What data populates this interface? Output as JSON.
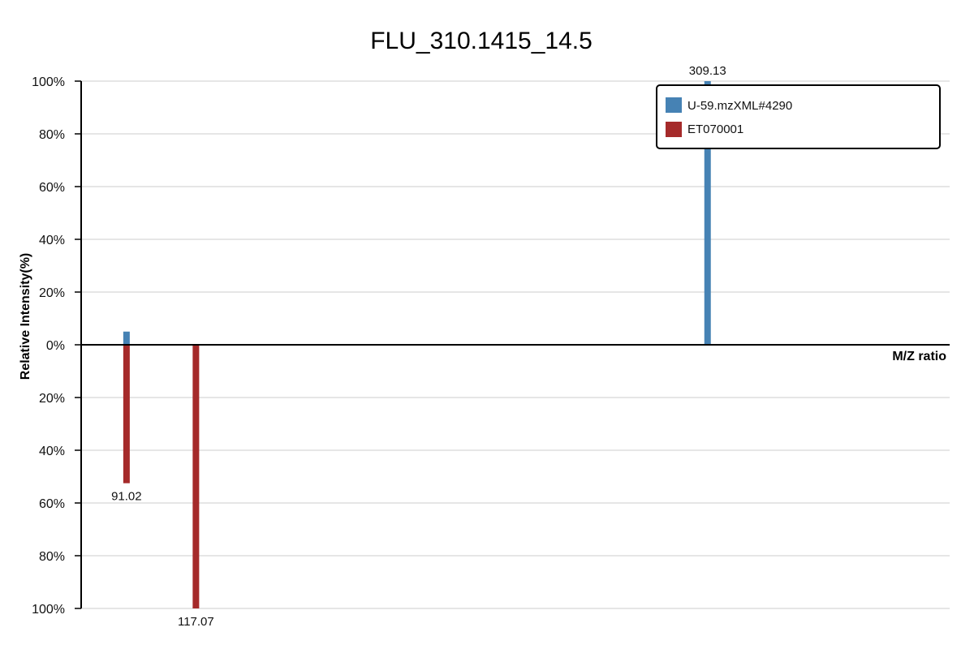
{
  "chart_data": {
    "type": "bar",
    "title": "FLU_310.1415_14.5",
    "xlabel": "M/Z ratio",
    "ylabel": "Relative Intensity(%)",
    "upper_ylim": [
      0,
      100
    ],
    "lower_ylim": [
      0,
      100
    ],
    "y_ticks_upper": [
      "100%",
      "80%",
      "60%",
      "40%",
      "20%",
      "0%"
    ],
    "y_ticks_lower": [
      "20%",
      "40%",
      "60%",
      "80%",
      "100%"
    ],
    "grid": true,
    "legend_position": "top-right",
    "x_range": [
      74,
      400
    ],
    "series": [
      {
        "name": "U-59.mzXML#4290",
        "color": "#4682b4",
        "direction": "up",
        "peaks": [
          {
            "mz": 91.02,
            "intensity": 5,
            "label": ""
          },
          {
            "mz": 309.13,
            "intensity": 100,
            "label": "309.13"
          }
        ]
      },
      {
        "name": "ET070001",
        "color": "#a52a2a",
        "direction": "down",
        "peaks": [
          {
            "mz": 91.02,
            "intensity": 52.5,
            "label": "91.02"
          },
          {
            "mz": 117.07,
            "intensity": 100,
            "label": "117.07"
          }
        ]
      }
    ]
  }
}
